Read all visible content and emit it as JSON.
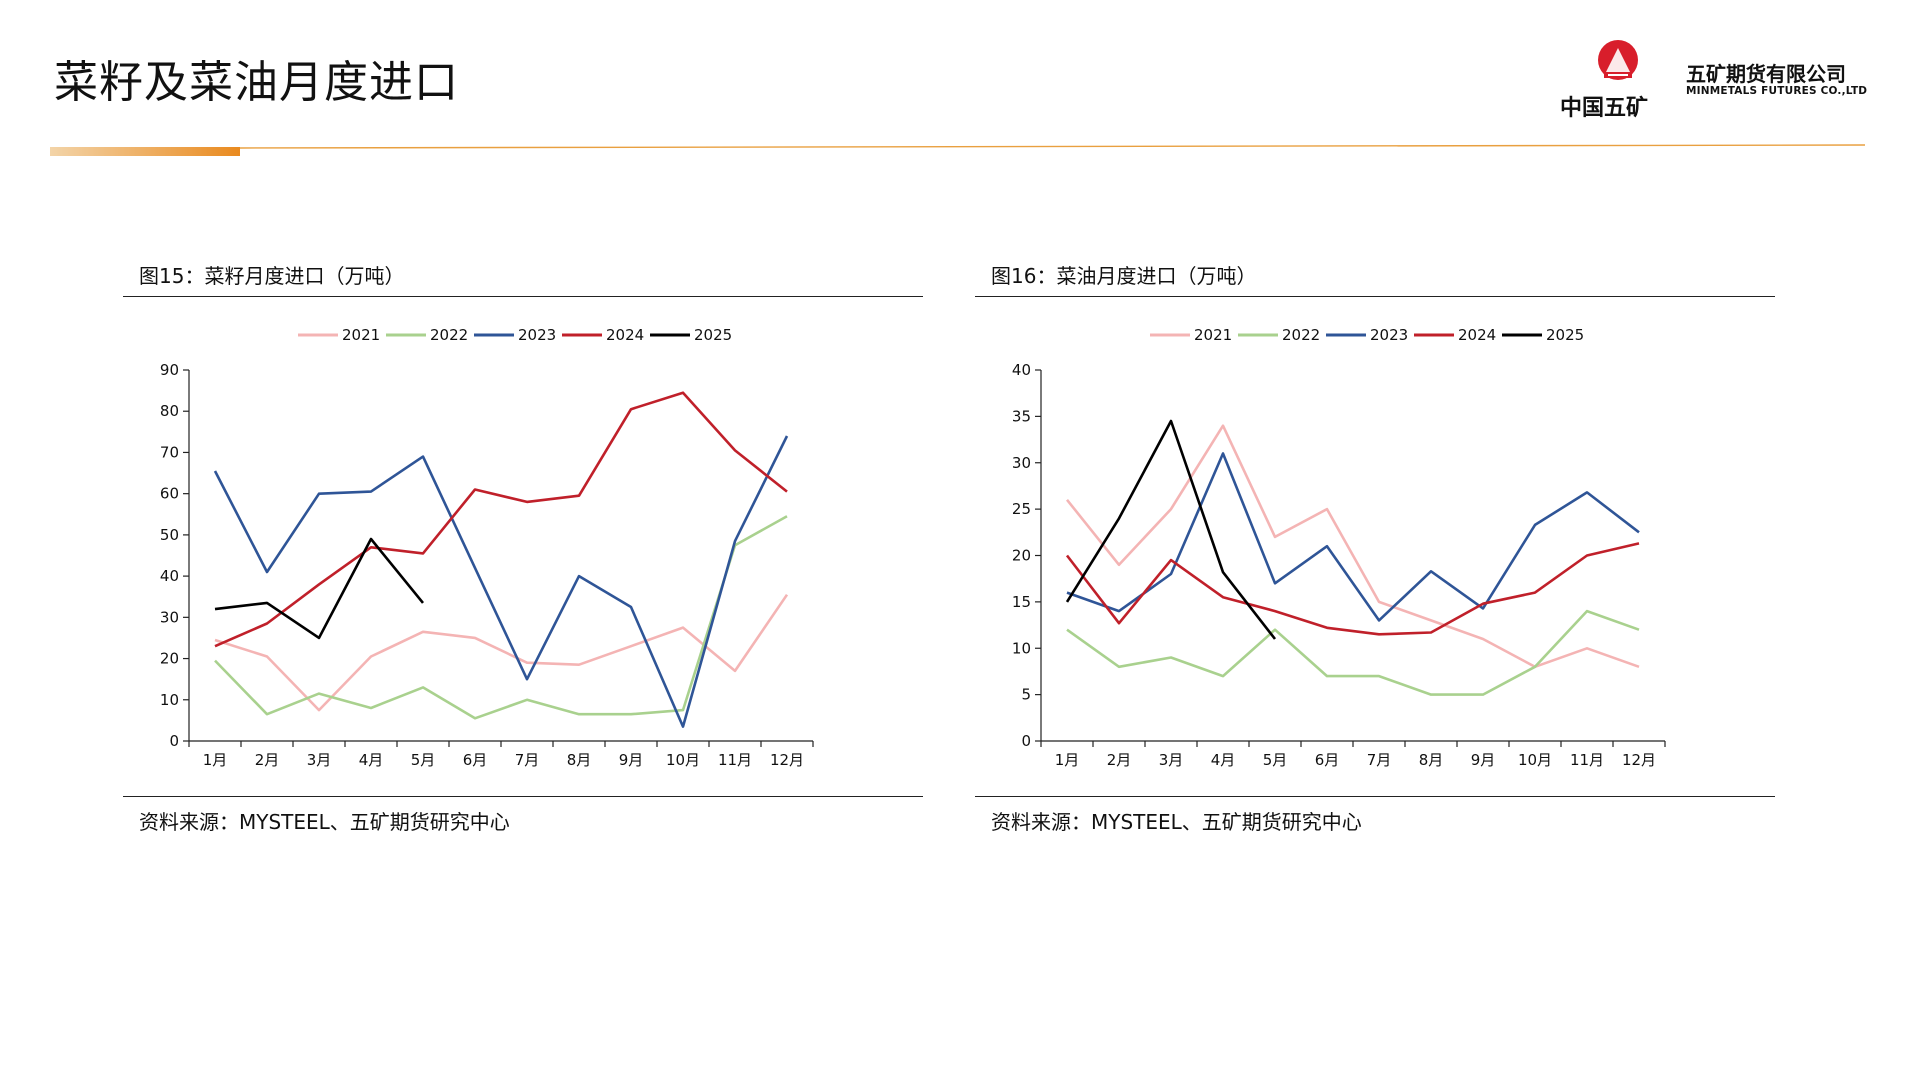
{
  "page": {
    "title": "菜籽及菜油月度进口"
  },
  "logo": {
    "cn_brand": "中国五矿",
    "company_cn": "五矿期货有限公司",
    "company_en": "MINMETALS FUTURES CO.,LTD"
  },
  "colors": {
    "accent": "#e9a040",
    "series": {
      "2021": "#f4b4b4",
      "2022": "#a9d18e",
      "2023": "#2f5597",
      "2024": "#c0202a",
      "2025": "#000000"
    }
  },
  "charts": [
    {
      "title": "图15：菜籽月度进口（万吨）",
      "source": "资料来源：MYSTEEL、五矿期货研究中心"
    },
    {
      "title": "图16：菜油月度进口（万吨）",
      "source": "资料来源：MYSTEEL、五矿期货研究中心"
    }
  ],
  "chart_data": [
    {
      "type": "line",
      "title": "图15：菜籽月度进口（万吨）",
      "categories": [
        "1月",
        "2月",
        "3月",
        "4月",
        "5月",
        "6月",
        "7月",
        "8月",
        "9月",
        "10月",
        "11月",
        "12月"
      ],
      "ylim": [
        0,
        90
      ],
      "yticks": [
        0,
        10,
        20,
        30,
        40,
        50,
        60,
        70,
        80,
        90
      ],
      "legend_position": "top",
      "grid": false,
      "series": [
        {
          "name": "2021",
          "values": [
            24.5,
            20.5,
            7.5,
            20.5,
            26.5,
            25,
            19,
            18.5,
            23,
            27.5,
            17,
            35.5
          ]
        },
        {
          "name": "2022",
          "values": [
            19.5,
            6.5,
            11.5,
            8,
            13,
            5.5,
            10,
            6.5,
            6.5,
            7.5,
            47.5,
            54.5
          ]
        },
        {
          "name": "2023",
          "values": [
            65.5,
            41,
            60,
            60.5,
            69,
            42,
            15,
            40,
            32.5,
            3.5,
            48.5,
            74
          ]
        },
        {
          "name": "2024",
          "values": [
            23,
            28.5,
            38,
            47,
            45.5,
            61,
            58,
            59.5,
            80.5,
            84.5,
            70.5,
            60.5
          ]
        },
        {
          "name": "2025",
          "values": [
            32,
            33.5,
            25,
            49,
            33.5,
            null,
            null,
            null,
            null,
            null,
            null,
            null
          ]
        }
      ]
    },
    {
      "type": "line",
      "title": "图16：菜油月度进口（万吨）",
      "categories": [
        "1月",
        "2月",
        "3月",
        "4月",
        "5月",
        "6月",
        "7月",
        "8月",
        "9月",
        "10月",
        "11月",
        "12月"
      ],
      "ylim": [
        0,
        40
      ],
      "yticks": [
        0,
        5,
        10,
        15,
        20,
        25,
        30,
        35,
        40
      ],
      "legend_position": "top",
      "grid": false,
      "series": [
        {
          "name": "2021",
          "values": [
            26,
            19,
            25,
            34,
            22,
            25,
            15,
            13,
            11,
            8,
            10,
            8
          ]
        },
        {
          "name": "2022",
          "values": [
            12,
            8,
            9,
            7,
            12,
            7,
            7,
            5,
            5,
            8,
            14,
            12
          ]
        },
        {
          "name": "2023",
          "values": [
            16,
            14,
            18,
            31,
            17,
            21,
            13,
            18.3,
            14.3,
            23.3,
            26.8,
            22.5
          ]
        },
        {
          "name": "2024",
          "values": [
            20,
            12.7,
            19.5,
            15.5,
            14,
            12.2,
            11.5,
            11.7,
            14.8,
            16,
            20,
            21.3
          ]
        },
        {
          "name": "2025",
          "values": [
            15,
            24,
            34.5,
            18.2,
            11,
            null,
            null,
            null,
            null,
            null,
            null,
            null
          ]
        }
      ]
    }
  ]
}
